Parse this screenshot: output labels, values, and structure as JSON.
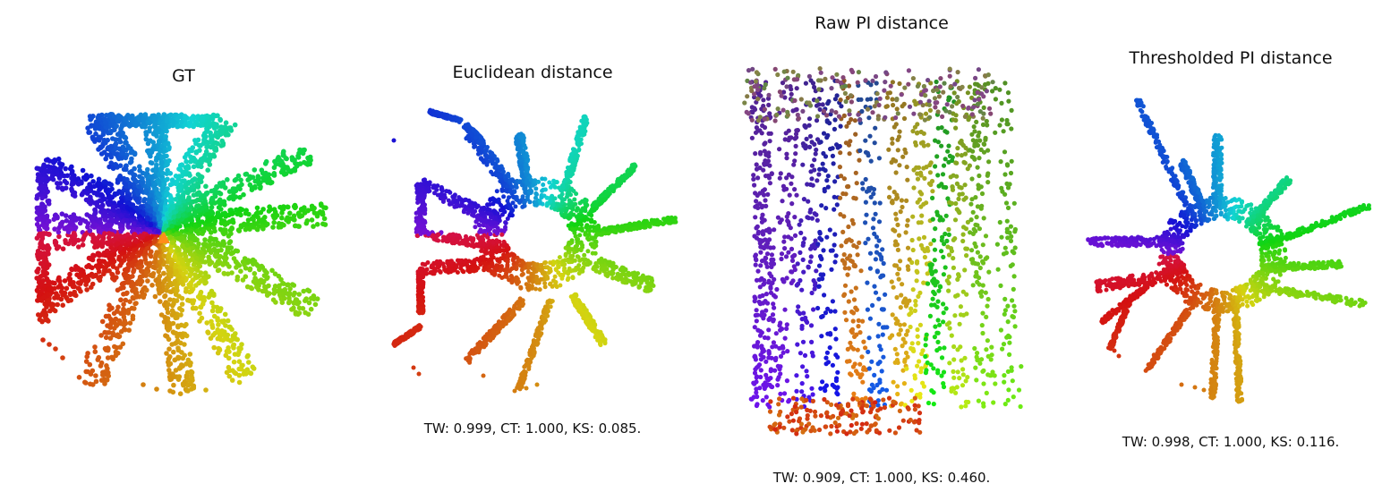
{
  "chart_data": [
    {
      "type": "scatter",
      "title": "GT",
      "metrics": "",
      "marker": "triangle",
      "marker_color": "#ff8c1a"
    },
    {
      "type": "scatter",
      "title": "Euclidean distance",
      "metrics": "TW: 0.999, CT: 1.000, KS: 0.085."
    },
    {
      "type": "scatter",
      "title": "Raw PI distance",
      "metrics": "TW: 0.909, CT: 1.000, KS: 0.460."
    },
    {
      "type": "scatter",
      "title": "Thresholded PI distance",
      "metrics": "TW: 0.998, CT: 1.000, KS: 0.116."
    }
  ]
}
